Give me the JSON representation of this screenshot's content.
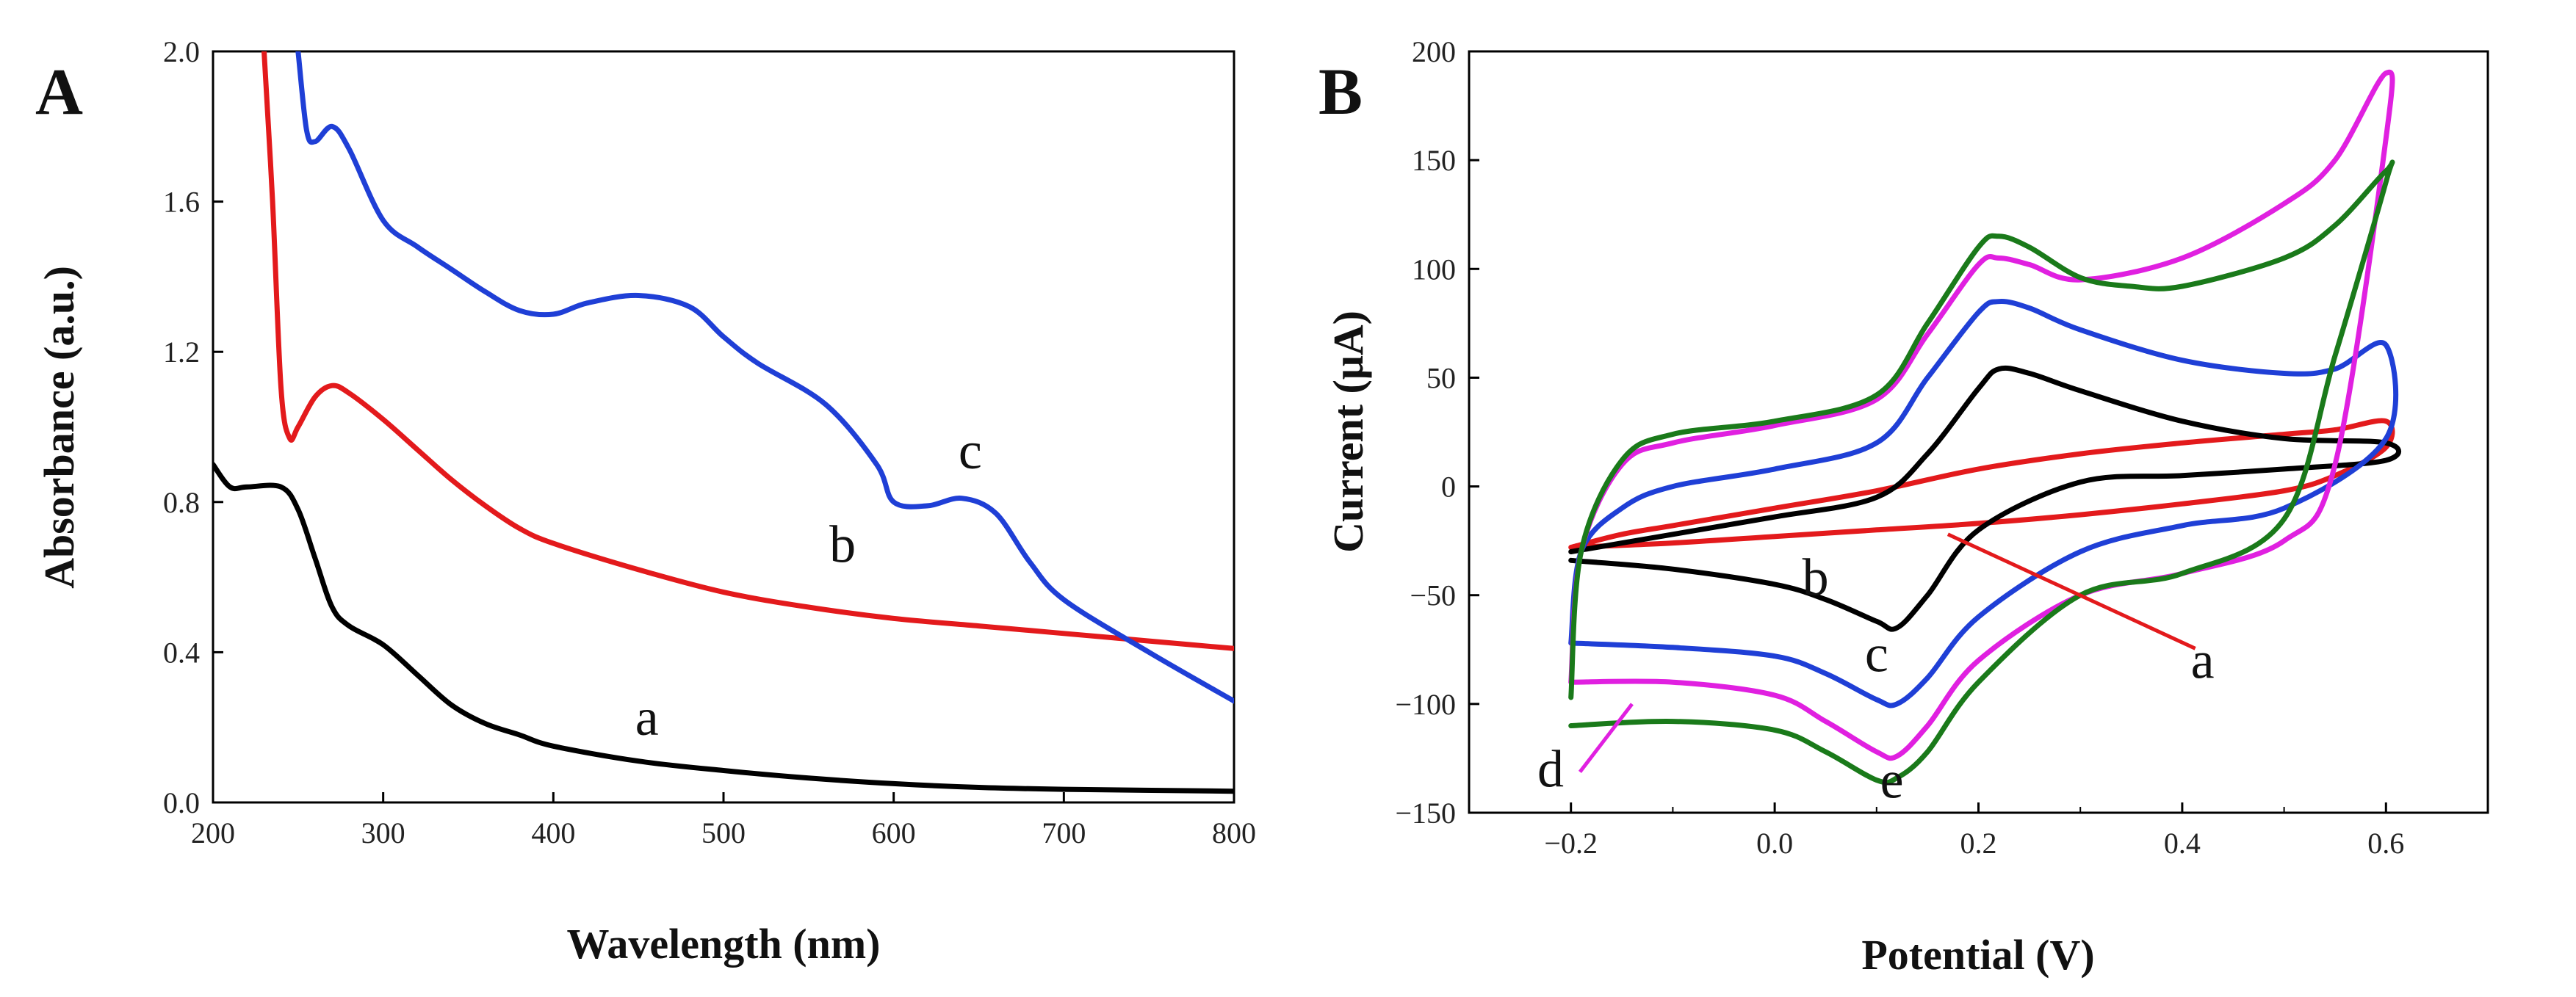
{
  "chart_data": [
    {
      "type": "line",
      "panel_label": "A",
      "xlabel": "Wavelength (nm)",
      "ylabel": "Absorbance (a.u.)",
      "xlim": [
        200,
        800
      ],
      "ylim": [
        0.0,
        2.0
      ],
      "xticks": [
        "200",
        "300",
        "400",
        "500",
        "600",
        "700",
        "800"
      ],
      "yticks": [
        "0.0",
        "0.4",
        "0.8",
        "1.2",
        "1.6",
        "2.0"
      ],
      "colors": {
        "a": "#000000",
        "b": "#e31a1c",
        "c": "#1f3fd6"
      },
      "series": [
        {
          "name": "a",
          "x": [
            200,
            210,
            220,
            240,
            250,
            260,
            270,
            280,
            300,
            320,
            340,
            360,
            380,
            400,
            450,
            500,
            550,
            600,
            650,
            700,
            800
          ],
          "y": [
            0.9,
            0.84,
            0.84,
            0.84,
            0.78,
            0.65,
            0.52,
            0.47,
            0.42,
            0.34,
            0.26,
            0.21,
            0.18,
            0.15,
            0.11,
            0.085,
            0.065,
            0.05,
            0.04,
            0.035,
            0.03
          ]
        },
        {
          "name": "b",
          "x": [
            230,
            235,
            240,
            245,
            250,
            260,
            270,
            280,
            300,
            320,
            340,
            360,
            380,
            400,
            450,
            500,
            550,
            600,
            650,
            700,
            750,
            800
          ],
          "y": [
            2.0,
            1.6,
            1.1,
            0.97,
            1.0,
            1.08,
            1.11,
            1.09,
            1.02,
            0.94,
            0.86,
            0.79,
            0.73,
            0.69,
            0.62,
            0.56,
            0.52,
            0.49,
            0.47,
            0.45,
            0.43,
            0.41
          ]
        },
        {
          "name": "c",
          "x": [
            250,
            255,
            260,
            270,
            280,
            300,
            320,
            340,
            360,
            380,
            400,
            420,
            450,
            480,
            500,
            520,
            560,
            590,
            600,
            620,
            640,
            660,
            680,
            700,
            750,
            800
          ],
          "y": [
            2.0,
            1.79,
            1.76,
            1.8,
            1.74,
            1.55,
            1.48,
            1.42,
            1.36,
            1.31,
            1.3,
            1.33,
            1.35,
            1.32,
            1.24,
            1.17,
            1.06,
            0.9,
            0.8,
            0.79,
            0.81,
            0.77,
            0.64,
            0.54,
            0.4,
            0.27
          ]
        }
      ],
      "annotations": [
        {
          "text": "a",
          "x": 455,
          "y": 0.18
        },
        {
          "text": "b",
          "x": 570,
          "y": 0.64
        },
        {
          "text": "c",
          "x": 645,
          "y": 0.89
        }
      ]
    },
    {
      "type": "line",
      "panel_label": "B",
      "xlabel": "Potential (V)",
      "ylabel": "Current (μA)",
      "xlim": [
        -0.3,
        0.7
      ],
      "ylim": [
        -150,
        200
      ],
      "xticks": [
        "−0.2",
        "0.0",
        "0.2",
        "0.4",
        "0.6"
      ],
      "yticks": [
        "−150",
        "−100",
        "−50",
        "0",
        "50",
        "100",
        "150",
        "200"
      ],
      "colors": {
        "a": "#e31a1c",
        "b": "#000000",
        "c": "#1f3fd6",
        "d": "#e020e0",
        "e": "#1a7a1a"
      },
      "series": [
        {
          "name": "a",
          "anodic_x": [
            -0.2,
            -0.15,
            -0.1,
            0.0,
            0.1,
            0.2,
            0.3,
            0.4,
            0.5,
            0.55,
            0.6
          ],
          "anodic_y": [
            -28,
            -22,
            -18,
            -10,
            -2,
            8,
            15,
            20,
            24,
            26,
            30
          ],
          "cathodic_x": [
            0.6,
            0.55,
            0.5,
            0.4,
            0.3,
            0.2,
            0.1,
            0.0,
            -0.1,
            -0.2
          ],
          "cathodic_y": [
            18,
            5,
            -2,
            -8,
            -13,
            -17,
            -20,
            -23,
            -26,
            -28
          ]
        },
        {
          "name": "b",
          "anodic_x": [
            -0.2,
            -0.1,
            0.0,
            0.1,
            0.15,
            0.2,
            0.22,
            0.25,
            0.3,
            0.4,
            0.5,
            0.6
          ],
          "anodic_y": [
            -30,
            -22,
            -14,
            -5,
            15,
            45,
            54,
            52,
            44,
            30,
            22,
            20
          ],
          "cathodic_x": [
            0.6,
            0.5,
            0.4,
            0.3,
            0.2,
            0.15,
            0.12,
            0.1,
            0.05,
            0.0,
            -0.1,
            -0.2
          ],
          "cathodic_y": [
            12,
            8,
            5,
            2,
            -20,
            -50,
            -65,
            -62,
            -52,
            -45,
            -38,
            -34
          ]
        },
        {
          "name": "c",
          "anodic_x": [
            -0.2,
            -0.19,
            -0.15,
            -0.1,
            0.0,
            0.1,
            0.15,
            0.2,
            0.22,
            0.25,
            0.3,
            0.4,
            0.5,
            0.55,
            0.6
          ],
          "anodic_y": [
            -72,
            -30,
            -10,
            0,
            8,
            20,
            50,
            80,
            85,
            82,
            72,
            58,
            52,
            54,
            65
          ],
          "cathodic_x": [
            0.6,
            0.5,
            0.4,
            0.3,
            0.2,
            0.15,
            0.12,
            0.1,
            0.05,
            0.0,
            -0.1,
            -0.2
          ],
          "cathodic_y": [
            22,
            -10,
            -18,
            -30,
            -60,
            -88,
            -100,
            -98,
            -86,
            -78,
            -74,
            -72
          ]
        },
        {
          "name": "d",
          "anodic_x": [
            -0.2,
            -0.19,
            -0.15,
            -0.1,
            0.0,
            0.1,
            0.15,
            0.2,
            0.22,
            0.25,
            0.3,
            0.4,
            0.5,
            0.55,
            0.6
          ],
          "anodic_y": [
            -90,
            -30,
            10,
            20,
            28,
            40,
            70,
            102,
            105,
            102,
            95,
            105,
            130,
            150,
            190
          ],
          "cathodic_x": [
            0.6,
            0.55,
            0.5,
            0.4,
            0.3,
            0.2,
            0.15,
            0.12,
            0.1,
            0.05,
            0.0,
            -0.1,
            -0.2
          ],
          "cathodic_y": [
            160,
            10,
            -25,
            -40,
            -50,
            -80,
            -110,
            -124,
            -122,
            -108,
            -96,
            -90,
            -90
          ]
        },
        {
          "name": "e",
          "anodic_x": [
            -0.2,
            -0.19,
            -0.15,
            -0.1,
            0.0,
            0.1,
            0.15,
            0.2,
            0.22,
            0.25,
            0.3,
            0.35,
            0.4,
            0.5,
            0.55,
            0.6
          ],
          "anodic_y": [
            -97,
            -30,
            12,
            24,
            30,
            42,
            75,
            110,
            115,
            110,
            96,
            92,
            92,
            105,
            120,
            145
          ],
          "cathodic_x": [
            0.6,
            0.55,
            0.5,
            0.4,
            0.3,
            0.2,
            0.15,
            0.12,
            0.1,
            0.05,
            0.0,
            -0.1,
            -0.2
          ],
          "cathodic_y": [
            140,
            60,
            -15,
            -40,
            -50,
            -90,
            -122,
            -134,
            -135,
            -122,
            -112,
            -108,
            -110
          ]
        }
      ],
      "annotations": [
        {
          "text": "a",
          "x": 0.42,
          "y": -88,
          "pointer_x": 0.17,
          "pointer_y": -22
        },
        {
          "text": "b",
          "x": 0.04,
          "y": -50
        },
        {
          "text": "c",
          "x": 0.1,
          "y": -85
        },
        {
          "text": "d",
          "x": -0.22,
          "y": -138,
          "pointer_x": -0.14,
          "pointer_y": -100
        },
        {
          "text": "e",
          "x": 0.115,
          "y": -143
        }
      ]
    }
  ]
}
